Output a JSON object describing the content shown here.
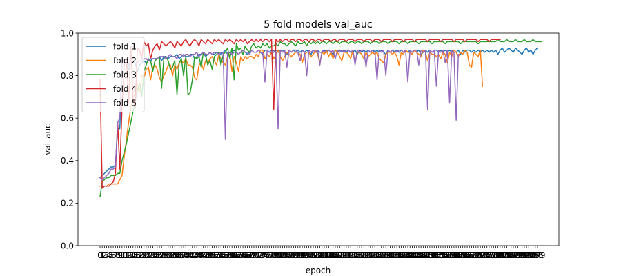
{
  "chart_data": {
    "type": "line",
    "title": "5 fold models val_auc",
    "xlabel": "epoch",
    "ylabel": "val_auc",
    "ylim": [
      0.0,
      1.0
    ],
    "y_ticks": [
      "0.0",
      "0.2",
      "0.4",
      "0.6",
      "0.8",
      "1.0"
    ],
    "x_ticks_note": "one tick per epoch, labels 0 to 199, overlapping",
    "grid": false,
    "legend_position": "top-left",
    "series": [
      {
        "name": "fold 1",
        "color": "#1f77b4",
        "values": [
          0.32,
          0.33,
          0.34,
          0.35,
          0.36,
          0.37,
          0.37,
          0.38,
          0.55,
          0.55,
          0.86,
          0.87,
          0.86,
          0.83,
          0.87,
          0.86,
          0.86,
          0.82,
          0.85,
          0.86,
          0.87,
          0.86,
          0.87,
          0.87,
          0.88,
          0.88,
          0.88,
          0.89,
          0.87,
          0.89,
          0.89,
          0.88,
          0.89,
          0.89,
          0.89,
          0.9,
          0.88,
          0.89,
          0.9,
          0.89,
          0.89,
          0.9,
          0.9,
          0.88,
          0.89,
          0.9,
          0.9,
          0.91,
          0.89,
          0.9,
          0.91,
          0.9,
          0.9,
          0.91,
          0.91,
          0.9,
          0.91,
          0.92,
          0.9,
          0.91,
          0.91,
          0.92,
          0.91,
          0.9,
          0.91,
          0.92,
          0.91,
          0.9,
          0.91,
          0.92,
          0.91,
          0.91,
          0.92,
          0.91,
          0.9,
          0.92,
          0.92,
          0.91,
          0.92,
          0.91,
          0.92,
          0.91,
          0.92,
          0.92,
          0.91,
          0.9,
          0.92,
          0.91,
          0.92,
          0.91,
          0.92,
          0.91,
          0.92,
          0.91,
          0.92,
          0.91,
          0.9,
          0.92,
          0.91,
          0.92,
          0.91,
          0.91,
          0.92,
          0.91,
          0.92,
          0.91,
          0.9,
          0.92,
          0.91,
          0.92,
          0.91,
          0.92,
          0.91,
          0.92,
          0.91,
          0.91,
          0.92,
          0.9,
          0.92,
          0.91,
          0.92,
          0.91,
          0.92,
          0.91,
          0.92,
          0.91,
          0.92,
          0.91,
          0.92,
          0.91,
          0.9,
          0.92,
          0.91,
          0.92,
          0.91,
          0.92,
          0.91,
          0.92,
          0.91,
          0.92,
          0.91,
          0.92,
          0.91,
          0.92,
          0.91,
          0.92,
          0.9,
          0.91,
          0.92,
          0.91,
          0.92,
          0.91,
          0.92,
          0.92,
          0.91,
          0.92,
          0.91,
          0.92,
          0.91,
          0.92,
          0.91,
          0.92,
          0.91,
          0.92,
          0.9,
          0.92,
          0.91,
          0.92,
          0.92,
          0.91,
          0.92,
          0.91,
          0.92,
          0.91,
          0.92,
          0.91,
          0.92,
          0.91,
          0.92,
          0.91,
          0.92,
          0.9,
          0.92,
          0.93,
          0.91,
          0.92,
          0.93,
          0.92,
          0.91,
          0.93,
          0.92,
          0.91,
          0.9,
          0.92,
          0.93,
          0.91,
          0.92,
          0.9,
          0.92,
          0.93
        ]
      },
      {
        "name": "fold 2",
        "color": "#ff7f0e",
        "values": [
          0.28,
          0.28,
          0.28,
          0.28,
          0.29,
          0.29,
          0.29,
          0.29,
          0.29,
          0.31,
          0.33,
          0.42,
          0.5,
          0.58,
          0.65,
          0.7,
          0.72,
          0.76,
          0.72,
          0.8,
          0.79,
          0.83,
          0.84,
          0.78,
          0.84,
          0.85,
          0.83,
          0.79,
          0.77,
          0.8,
          0.82,
          0.85,
          0.85,
          0.8,
          0.85,
          0.83,
          0.86,
          0.87,
          0.86,
          0.88,
          0.85,
          0.85,
          0.84,
          0.79,
          0.78,
          0.85,
          0.86,
          0.83,
          0.87,
          0.86,
          0.88,
          0.89,
          0.87,
          0.85,
          0.9,
          0.88,
          0.86,
          0.85,
          0.89,
          0.9,
          0.82,
          0.89,
          0.86,
          0.82,
          0.89,
          0.87,
          0.89,
          0.88,
          0.89,
          0.89,
          0.88,
          0.9,
          0.89,
          0.92,
          0.92,
          0.88,
          0.9,
          0.89,
          0.91,
          0.88,
          0.9,
          0.92,
          0.89,
          0.87,
          0.89,
          0.91,
          0.9,
          0.89,
          0.9,
          0.91,
          0.91,
          0.9,
          0.86,
          0.9,
          0.91,
          0.91,
          0.89,
          0.9,
          0.92,
          0.9,
          0.86,
          0.91,
          0.9,
          0.92,
          0.89,
          0.91,
          0.88,
          0.92,
          0.91,
          0.89,
          0.87,
          0.91,
          0.91,
          0.9,
          0.88,
          0.92,
          0.86,
          0.91,
          0.91,
          0.9,
          0.88,
          0.91,
          0.89,
          0.9,
          0.91,
          0.9,
          0.91,
          0.88,
          0.87,
          0.86,
          0.9,
          0.91,
          0.91,
          0.9,
          0.91,
          0.89,
          0.85,
          0.91,
          0.9,
          0.92,
          0.91,
          0.91,
          0.9,
          0.92,
          0.91,
          0.9,
          0.89,
          0.92,
          0.91,
          0.87,
          0.91,
          0.9,
          0.9,
          0.89,
          0.9,
          0.88,
          0.91,
          0.9,
          0.86,
          0.91,
          0.89,
          0.92,
          0.91,
          0.89,
          0.91,
          0.9,
          0.92,
          0.91,
          0.85,
          0.84,
          0.91,
          0.9,
          0.89,
          0.92,
          0.75
        ]
      },
      {
        "name": "fold 3",
        "color": "#2ca02c",
        "values": [
          0.23,
          0.3,
          0.31,
          0.32,
          0.32,
          0.33,
          0.33,
          0.33,
          0.34,
          0.34,
          0.4,
          0.44,
          0.48,
          0.53,
          0.58,
          0.63,
          0.68,
          0.73,
          0.76,
          0.7,
          0.82,
          0.85,
          0.88,
          0.87,
          0.82,
          0.87,
          0.88,
          0.89,
          0.74,
          0.88,
          0.89,
          0.87,
          0.83,
          0.84,
          0.87,
          0.71,
          0.86,
          0.88,
          0.8,
          0.89,
          0.71,
          0.72,
          0.78,
          0.89,
          0.88,
          0.89,
          0.84,
          0.91,
          0.9,
          0.85,
          0.87,
          0.83,
          0.89,
          0.9,
          0.91,
          0.85,
          0.9,
          0.91,
          0.93,
          0.88,
          0.93,
          0.78,
          0.95,
          0.92,
          0.93,
          0.9,
          0.94,
          0.92,
          0.91,
          0.94,
          0.95,
          0.93,
          0.94,
          0.93,
          0.95,
          0.94,
          0.95,
          0.93,
          0.94,
          0.94,
          0.95,
          0.94,
          0.96,
          0.95,
          0.95,
          0.94,
          0.95,
          0.96,
          0.95,
          0.94,
          0.96,
          0.95,
          0.95,
          0.96,
          0.94,
          0.96,
          0.95,
          0.96,
          0.95,
          0.96,
          0.95,
          0.96,
          0.96,
          0.95,
          0.96,
          0.96,
          0.95,
          0.96,
          0.96,
          0.95,
          0.96,
          0.96,
          0.96,
          0.95,
          0.96,
          0.96,
          0.95,
          0.96,
          0.96,
          0.95,
          0.96,
          0.96,
          0.96,
          0.95,
          0.96,
          0.96,
          0.96,
          0.95,
          0.96,
          0.96,
          0.96,
          0.95,
          0.96,
          0.96,
          0.96,
          0.96,
          0.95,
          0.96,
          0.96,
          0.96,
          0.95,
          0.96,
          0.96,
          0.96,
          0.96,
          0.95,
          0.96,
          0.96,
          0.96,
          0.96,
          0.96,
          0.95,
          0.96,
          0.96,
          0.96,
          0.96,
          0.96,
          0.95,
          0.96,
          0.96,
          0.96,
          0.96,
          0.96,
          0.96,
          0.95,
          0.96,
          0.96,
          0.96,
          0.96,
          0.96,
          0.96,
          0.96,
          0.95,
          0.96,
          0.96,
          0.96,
          0.96,
          0.96,
          0.96,
          0.96,
          0.96,
          0.97,
          0.96,
          0.96,
          0.96,
          0.97,
          0.96,
          0.96,
          0.96,
          0.97,
          0.96,
          0.96,
          0.96,
          0.97,
          0.96,
          0.96,
          0.96,
          0.97,
          0.96,
          0.96,
          0.96,
          0.96
        ]
      },
      {
        "name": "fold 4",
        "color": "#d62728",
        "values": [
          0.78,
          0.27,
          0.28,
          0.28,
          0.28,
          0.29,
          0.3,
          0.34,
          0.58,
          0.36,
          0.65,
          0.85,
          0.88,
          0.67,
          0.94,
          0.69,
          0.65,
          0.93,
          0.92,
          0.88,
          0.96,
          0.94,
          0.95,
          0.88,
          0.92,
          0.94,
          0.95,
          0.92,
          0.96,
          0.95,
          0.94,
          0.95,
          0.96,
          0.95,
          0.93,
          0.96,
          0.95,
          0.94,
          0.96,
          0.97,
          0.95,
          0.94,
          0.96,
          0.97,
          0.96,
          0.94,
          0.97,
          0.96,
          0.95,
          0.97,
          0.96,
          0.95,
          0.97,
          0.96,
          0.97,
          0.96,
          0.95,
          0.97,
          0.96,
          0.97,
          0.96,
          0.95,
          0.97,
          0.96,
          0.97,
          0.96,
          0.97,
          0.95,
          0.96,
          0.97,
          0.96,
          0.97,
          0.96,
          0.97,
          0.96,
          0.97,
          0.97,
          0.96,
          0.97,
          0.64,
          0.97,
          0.96,
          0.97,
          0.96,
          0.97,
          0.97,
          0.96,
          0.97,
          0.97,
          0.96,
          0.97,
          0.97,
          0.96,
          0.97,
          0.97,
          0.96,
          0.97,
          0.97,
          0.96,
          0.97,
          0.97,
          0.96,
          0.97,
          0.97,
          0.97,
          0.96,
          0.97,
          0.97,
          0.96,
          0.97,
          0.97,
          0.97,
          0.96,
          0.97,
          0.97,
          0.97,
          0.96,
          0.97,
          0.97,
          0.97,
          0.96,
          0.97,
          0.97,
          0.97,
          0.96,
          0.97,
          0.97,
          0.97,
          0.96,
          0.97,
          0.97,
          0.97,
          0.97,
          0.96,
          0.97,
          0.97,
          0.97,
          0.97,
          0.96,
          0.97,
          0.97,
          0.97,
          0.97,
          0.96,
          0.97,
          0.97,
          0.97,
          0.97,
          0.97,
          0.96,
          0.97,
          0.97,
          0.97,
          0.97,
          0.97,
          0.96,
          0.97,
          0.97,
          0.97,
          0.97,
          0.97,
          0.96,
          0.97,
          0.97,
          0.97,
          0.97,
          0.96,
          0.97,
          0.97,
          0.97,
          0.97,
          0.97,
          0.96,
          0.97,
          0.97,
          0.97,
          0.97,
          0.96,
          0.97,
          0.97,
          0.97,
          0.97,
          0.97
        ]
      },
      {
        "name": "fold 5",
        "color": "#9467bd",
        "values": [
          0.32,
          0.31,
          0.32,
          0.33,
          0.34,
          0.36,
          0.36,
          0.37,
          0.58,
          0.6,
          0.88,
          0.86,
          0.87,
          0.85,
          0.87,
          0.86,
          0.86,
          0.86,
          0.87,
          0.87,
          0.88,
          0.88,
          0.87,
          0.88,
          0.88,
          0.88,
          0.88,
          0.89,
          0.89,
          0.89,
          0.88,
          0.89,
          0.9,
          0.89,
          0.89,
          0.88,
          0.9,
          0.9,
          0.89,
          0.9,
          0.9,
          0.89,
          0.9,
          0.9,
          0.91,
          0.89,
          0.9,
          0.91,
          0.9,
          0.9,
          0.91,
          0.9,
          0.91,
          0.91,
          0.9,
          0.91,
          0.91,
          0.5,
          0.91,
          0.91,
          0.9,
          0.91,
          0.91,
          0.9,
          0.91,
          0.92,
          0.91,
          0.91,
          0.9,
          0.92,
          0.91,
          0.91,
          0.92,
          0.91,
          0.91,
          0.77,
          0.92,
          0.91,
          0.91,
          0.92,
          0.91,
          0.55,
          0.92,
          0.91,
          0.92,
          0.84,
          0.92,
          0.91,
          0.92,
          0.92,
          0.91,
          0.87,
          0.92,
          0.91,
          0.8,
          0.92,
          0.91,
          0.92,
          0.91,
          0.92,
          0.85,
          0.92,
          0.91,
          0.92,
          0.92,
          0.91,
          0.92,
          0.88,
          0.92,
          0.91,
          0.92,
          0.91,
          0.92,
          0.92,
          0.91,
          0.92,
          0.85,
          0.92,
          0.91,
          0.92,
          0.92,
          0.84,
          0.92,
          0.91,
          0.92,
          0.92,
          0.78,
          0.92,
          0.91,
          0.92,
          0.8,
          0.92,
          0.91,
          0.92,
          0.92,
          0.91,
          0.92,
          0.92,
          0.91,
          0.92,
          0.77,
          0.92,
          0.91,
          0.92,
          0.92,
          0.85,
          0.92,
          0.91,
          0.92,
          0.64,
          0.92,
          0.91,
          0.92,
          0.75,
          0.92,
          0.91,
          0.92,
          0.86,
          0.92,
          0.67,
          0.92,
          0.91,
          0.59,
          0.9
        ]
      }
    ]
  }
}
